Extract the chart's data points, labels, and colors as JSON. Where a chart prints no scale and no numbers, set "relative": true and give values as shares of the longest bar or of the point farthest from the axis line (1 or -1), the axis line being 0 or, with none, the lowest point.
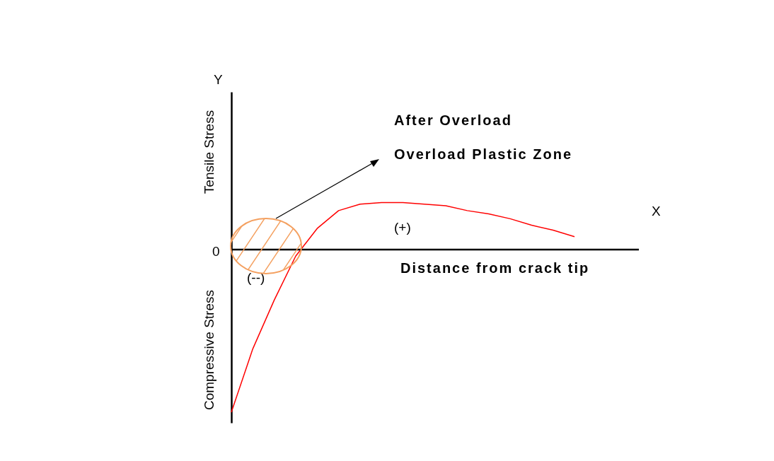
{
  "chart_data": {
    "type": "line",
    "relative": true,
    "xlabel": "Distance from crack tip",
    "ylabel": "Tensile Stress",
    "categories": [
      null,
      null,
      null,
      null,
      null,
      null,
      null,
      null,
      null,
      null,
      null,
      null,
      null,
      null,
      null,
      null,
      null,
      null,
      null,
      null
    ],
    "series": [
      {
        "color": "#ff0000",
        "values": [
          -1,
          -0.61,
          -0.31,
          -0.04,
          0.13,
          0.24,
          0.28,
          0.29,
          0.29,
          0.28,
          0.27,
          0.24,
          0.22,
          0.19,
          0.15,
          0.12,
          0.08,
          null,
          null,
          null
        ]
      }
    ],
    "annotations": [
      "Compressive Stress",
      "Y",
      "X",
      "0",
      "After Overload",
      "Overload Plastic Zone",
      "(+)",
      "(--)"
    ],
    "marker": "none",
    "line_style": "solid",
    "grid": false,
    "legend": false
  }
}
